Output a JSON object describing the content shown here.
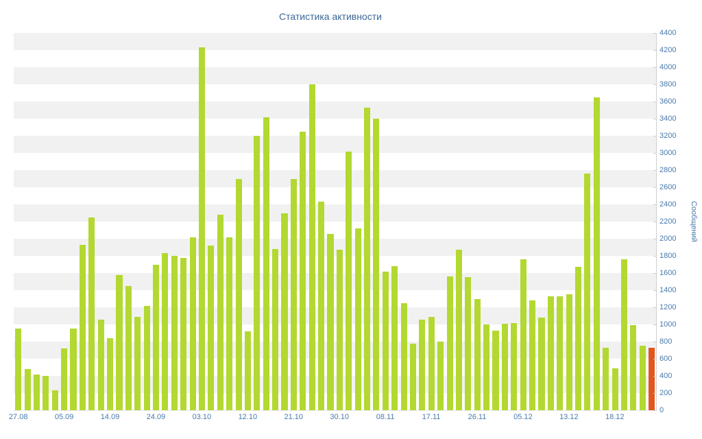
{
  "colors": {
    "bar": "#b3d831",
    "highlight": "#e2571e",
    "title_text": "#3a6795",
    "tick_text": "#4879ab",
    "stripe": "#f1f1f1",
    "axis_line": "#cfcfcf"
  },
  "chart_data": {
    "type": "bar",
    "title": "Статистика активности",
    "ylabel": "Сообщений",
    "xlabel": "",
    "ylim": [
      0,
      4400
    ],
    "grid": "striped-bands",
    "legend": "none",
    "yticks": [
      0,
      200,
      400,
      600,
      800,
      1000,
      1200,
      1400,
      1600,
      1800,
      2000,
      2200,
      2400,
      2600,
      2800,
      3000,
      3200,
      3400,
      3600,
      3800,
      4000,
      4200,
      4400
    ],
    "x_labels": [
      {
        "label": "27.08",
        "index": 0
      },
      {
        "label": "05.09",
        "index": 5
      },
      {
        "label": "14.09",
        "index": 10
      },
      {
        "label": "24.09",
        "index": 15
      },
      {
        "label": "03.10",
        "index": 20
      },
      {
        "label": "12.10",
        "index": 25
      },
      {
        "label": "21.10",
        "index": 30
      },
      {
        "label": "30.10",
        "index": 35
      },
      {
        "label": "08.11",
        "index": 40
      },
      {
        "label": "17.11",
        "index": 45
      },
      {
        "label": "26.11",
        "index": 50
      },
      {
        "label": "05.12",
        "index": 55
      },
      {
        "label": "13.12",
        "index": 60
      },
      {
        "label": "18.12",
        "index": 65
      }
    ],
    "values": [
      950,
      480,
      420,
      400,
      230,
      720,
      950,
      1930,
      2250,
      1060,
      840,
      1580,
      1450,
      1090,
      1220,
      1700,
      1830,
      1800,
      1780,
      2020,
      4230,
      1920,
      2280,
      2020,
      2700,
      920,
      3200,
      3420,
      1880,
      2300,
      2700,
      3250,
      3800,
      2430,
      2060,
      1870,
      3020,
      2120,
      3530,
      3400,
      1620,
      1680,
      1250,
      780,
      1060,
      1090,
      800,
      1560,
      1870,
      1550,
      1300,
      1000,
      930,
      1010,
      1020,
      1760,
      1280,
      1080,
      1330,
      1330,
      1350,
      1670,
      2760,
      3650,
      730,
      490,
      1760,
      990,
      750,
      730
    ],
    "highlight_last": true
  }
}
